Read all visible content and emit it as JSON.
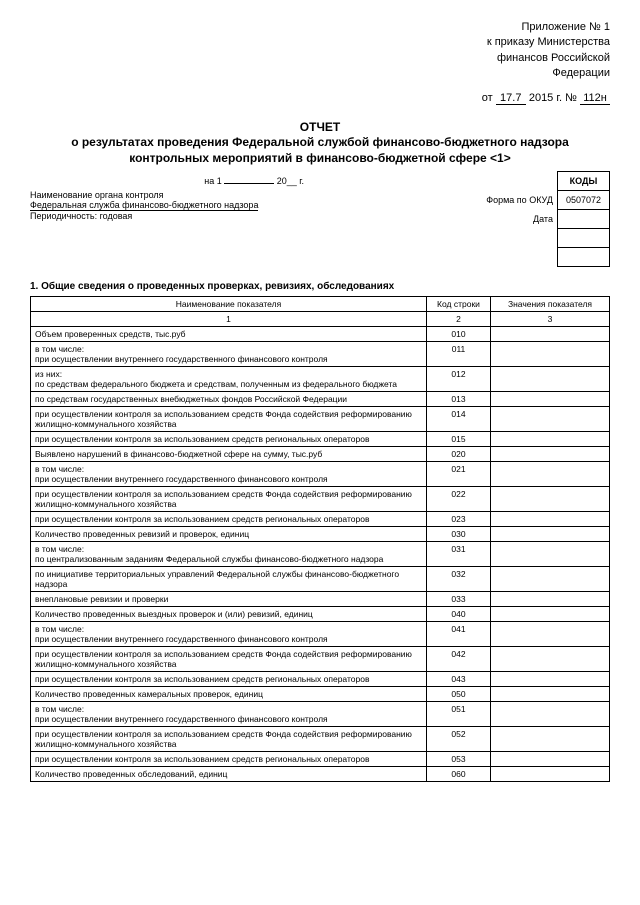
{
  "appendix": {
    "line1": "Приложение № 1",
    "line2": "к приказу Министерства",
    "line3": "финансов Российской",
    "line4": "Федерации",
    "date_prefix": "от",
    "date_day": "17.7",
    "date_year": "2015 г. №",
    "date_num": "112н"
  },
  "title": {
    "h1": "ОТЧЕТ",
    "h2": "о результатах проведения Федеральной службой финансово-бюджетного надзора контрольных мероприятий в финансово-бюджетной сфере <1>"
  },
  "codes": {
    "header": "КОДЫ",
    "okud_label": "Форма по ОКУД",
    "okud_value": "0507072",
    "date_label": "Дата"
  },
  "na": {
    "prefix": "на 1",
    "suffix": "20__ г."
  },
  "org": {
    "label": "Наименование органа контроля",
    "name": "Федеральная служба финансово-бюджетного надзора",
    "period": "Периодичность: годовая"
  },
  "section1": {
    "title": "1. Общие сведения о проведенных проверках, ревизиях, обследованиях",
    "col1": "Наименование показателя",
    "col2": "Код строки",
    "col3": "Значения показателя",
    "n1": "1",
    "n2": "2",
    "n3": "3",
    "rows": [
      {
        "name": "Объем проверенных средств, тыс.руб",
        "code": "010"
      },
      {
        "name": "в том числе:\nпри осуществлении внутреннего государственного финансового контроля",
        "code": "011"
      },
      {
        "name": "из них:\nпо средствам федерального бюджета и средствам, полученным из федерального бюджета",
        "code": "012"
      },
      {
        "name": "по средствам государственных внебюджетных фондов Российской Федерации",
        "code": "013"
      },
      {
        "name": "при осуществлении контроля за использованием средств Фонда содействия реформированию жилищно-коммунального хозяйства",
        "code": "014"
      },
      {
        "name": "при осуществлении контроля за использованием средств региональных операторов",
        "code": "015"
      },
      {
        "name": "Выявлено нарушений в финансово-бюджетной сфере на сумму, тыс.руб",
        "code": "020"
      },
      {
        "name": "в том числе:\nпри осуществлении внутреннего государственного финансового контроля",
        "code": "021"
      },
      {
        "name": "при осуществлении контроля за использованием средств Фонда содействия реформированию жилищно-коммунального хозяйства",
        "code": "022"
      },
      {
        "name": "при осуществлении контроля за использованием средств региональных операторов",
        "code": "023"
      },
      {
        "name": "Количество проведенных ревизий и проверок, единиц",
        "code": "030"
      },
      {
        "name": "в том числе:\nпо централизованным заданиям Федеральной службы финансово-бюджетного надзора",
        "code": "031"
      },
      {
        "name": "по инициативе территориальных управлений Федеральной службы финансово-бюджетного надзора",
        "code": "032"
      },
      {
        "name": "внеплановые ревизии и проверки",
        "code": "033"
      },
      {
        "name": "Количество проведенных выездных проверок и (или) ревизий, единиц",
        "code": "040"
      },
      {
        "name": "в том числе:\nпри осуществлении внутреннего государственного финансового контроля",
        "code": "041"
      },
      {
        "name": "при осуществлении контроля за использованием средств Фонда содействия реформированию жилищно-коммунального хозяйства",
        "code": "042"
      },
      {
        "name": "при осуществлении контроля за использованием средств региональных операторов",
        "code": "043"
      },
      {
        "name": "Количество проведенных камеральных проверок, единиц",
        "code": "050"
      },
      {
        "name": "в том числе:\nпри осуществлении внутреннего государственного финансового контроля",
        "code": "051"
      },
      {
        "name": "при осуществлении контроля за использованием средств Фонда содействия реформированию жилищно-коммунального хозяйства",
        "code": "052"
      },
      {
        "name": "при осуществлении контроля за использованием средств региональных операторов",
        "code": "053"
      },
      {
        "name": "Количество проведенных обследований, единиц",
        "code": "060"
      }
    ]
  }
}
